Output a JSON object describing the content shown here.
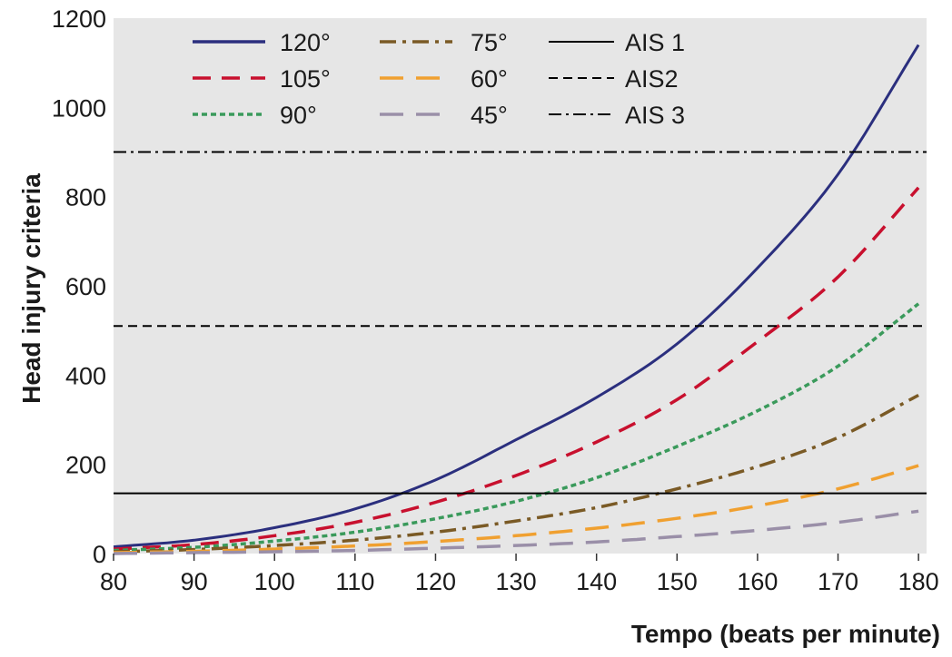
{
  "chart_data": {
    "type": "line",
    "xlabel": "Tempo (beats per minute)",
    "ylabel": "Head injury criteria",
    "xlim": [
      80,
      181
    ],
    "ylim": [
      0,
      1200
    ],
    "xticks": [
      80,
      90,
      100,
      110,
      120,
      130,
      140,
      150,
      160,
      170,
      180
    ],
    "yticks": [
      0,
      200,
      400,
      600,
      800,
      1000,
      1200
    ],
    "grid": false,
    "background": "#e6e6e6",
    "legend_position": "top-left",
    "x": [
      80,
      90,
      100,
      110,
      120,
      130,
      140,
      150,
      160,
      170,
      180
    ],
    "series": [
      {
        "name": "120°",
        "color": "#2b2f7e",
        "dash": "solid",
        "values": [
          15,
          30,
          58,
          100,
          165,
          255,
          350,
          470,
          640,
          850,
          1140
        ]
      },
      {
        "name": "105°",
        "color": "#c8102e",
        "dash": "dash",
        "values": [
          10,
          20,
          40,
          70,
          115,
          175,
          250,
          345,
          475,
          620,
          820
        ]
      },
      {
        "name": "90°",
        "color": "#3a9a5b",
        "dash": "dot",
        "values": [
          7,
          14,
          28,
          48,
          78,
          117,
          170,
          240,
          320,
          420,
          560
        ]
      },
      {
        "name": "75°",
        "color": "#7a5a25",
        "dash": "dashdot",
        "values": [
          4,
          9,
          18,
          30,
          48,
          73,
          103,
          145,
          195,
          260,
          355
        ]
      },
      {
        "name": "60°",
        "color": "#f0a030",
        "dash": "longdash",
        "values": [
          2,
          5,
          10,
          17,
          27,
          40,
          57,
          79,
          107,
          145,
          197
        ]
      },
      {
        "name": "45°",
        "color": "#9a8fa8",
        "dash": "longdash",
        "values": [
          0,
          2,
          4,
          7,
          12,
          18,
          26,
          38,
          52,
          70,
          95
        ]
      }
    ],
    "reference_lines": [
      {
        "name": "AIS 1",
        "y": 135,
        "color": "#000000",
        "dash": "solid"
      },
      {
        "name": "AIS2",
        "y": 510,
        "color": "#000000",
        "dash": "dash"
      },
      {
        "name": "AIS 3",
        "y": 900,
        "color": "#000000",
        "dash": "dashdot"
      }
    ]
  }
}
